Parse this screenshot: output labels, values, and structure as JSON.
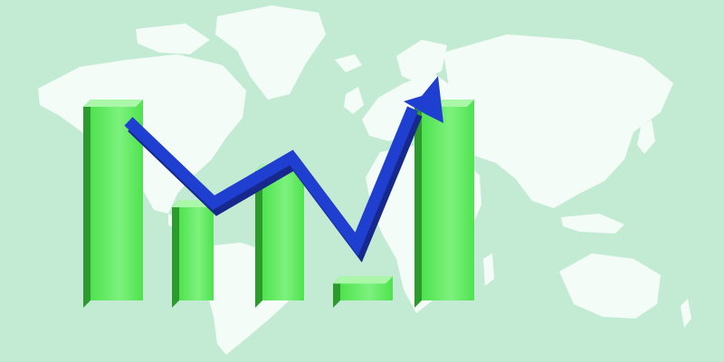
{
  "scene": {
    "background_color": "#c3ebd3",
    "map_color": "#f4fcf8",
    "bar_front_color": "#4fe24f",
    "bar_light_color": "#7df27d",
    "bar_side_color": "#2c9a2c",
    "bar_top_color": "#aaf7aa",
    "arrow_color": "#1f3fd1",
    "arrow_dark_color": "#16288c",
    "icons": [
      "world-map-icon",
      "bar-chart-icon",
      "trend-arrow-icon"
    ]
  },
  "bars": {
    "count": 5,
    "relative_heights": [
      1.0,
      0.5,
      0.68,
      0.12,
      1.0
    ]
  }
}
